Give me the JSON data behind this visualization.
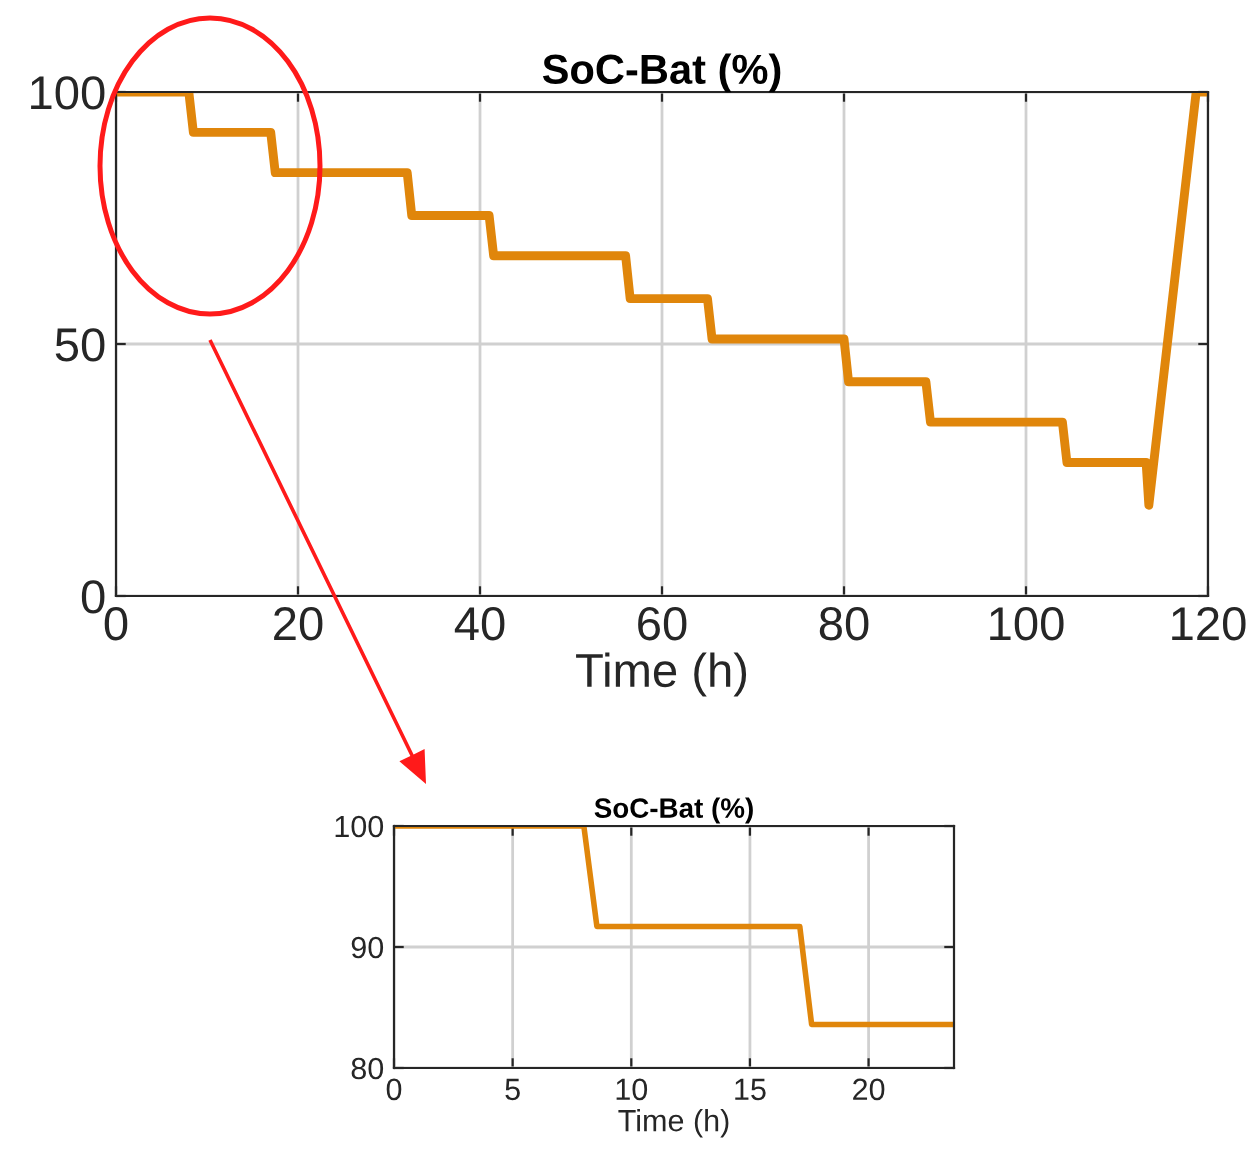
{
  "chart_data": [
    {
      "type": "line",
      "title": "SoC-Bat (%)",
      "xlabel": "Time (h)",
      "xlim": [
        0,
        120
      ],
      "xticks": [
        0,
        20,
        40,
        60,
        80,
        100,
        120
      ],
      "ylim": [
        0,
        100
      ],
      "yticks": [
        0,
        50,
        100
      ],
      "grid": true,
      "legend": false,
      "marker": "none",
      "line_style": "solid",
      "series": [
        {
          "color": "#e0860b",
          "x": [
            0,
            8.0,
            8.5,
            17.0,
            17.5,
            32.0,
            32.5,
            41.0,
            41.5,
            56.0,
            56.5,
            65.0,
            65.5,
            80.0,
            80.5,
            89.0,
            89.5,
            104.0,
            104.5,
            113.2,
            113.5,
            118.7,
            120
          ],
          "values": [
            100,
            100,
            92,
            92,
            84,
            84,
            75.5,
            75.5,
            67.5,
            67.5,
            59,
            59,
            51,
            51,
            42.5,
            42.5,
            34.5,
            34.5,
            26.5,
            26.5,
            18,
            100,
            100
          ]
        }
      ]
    },
    {
      "type": "line",
      "title": "SoC-Bat (%)",
      "xlabel": "Time (h)",
      "xlim": [
        0,
        23.6
      ],
      "xticks": [
        0,
        5,
        10,
        15,
        20
      ],
      "ylim": [
        80,
        100
      ],
      "yticks": [
        80,
        90,
        100
      ],
      "grid": true,
      "legend": false,
      "marker": "none",
      "line_style": "solid",
      "series": [
        {
          "color": "#e0860b",
          "x": [
            0,
            8.0,
            8.55,
            17.1,
            17.6,
            23.6
          ],
          "values": [
            100,
            100,
            91.7,
            91.7,
            83.6,
            83.6
          ]
        }
      ]
    }
  ]
}
